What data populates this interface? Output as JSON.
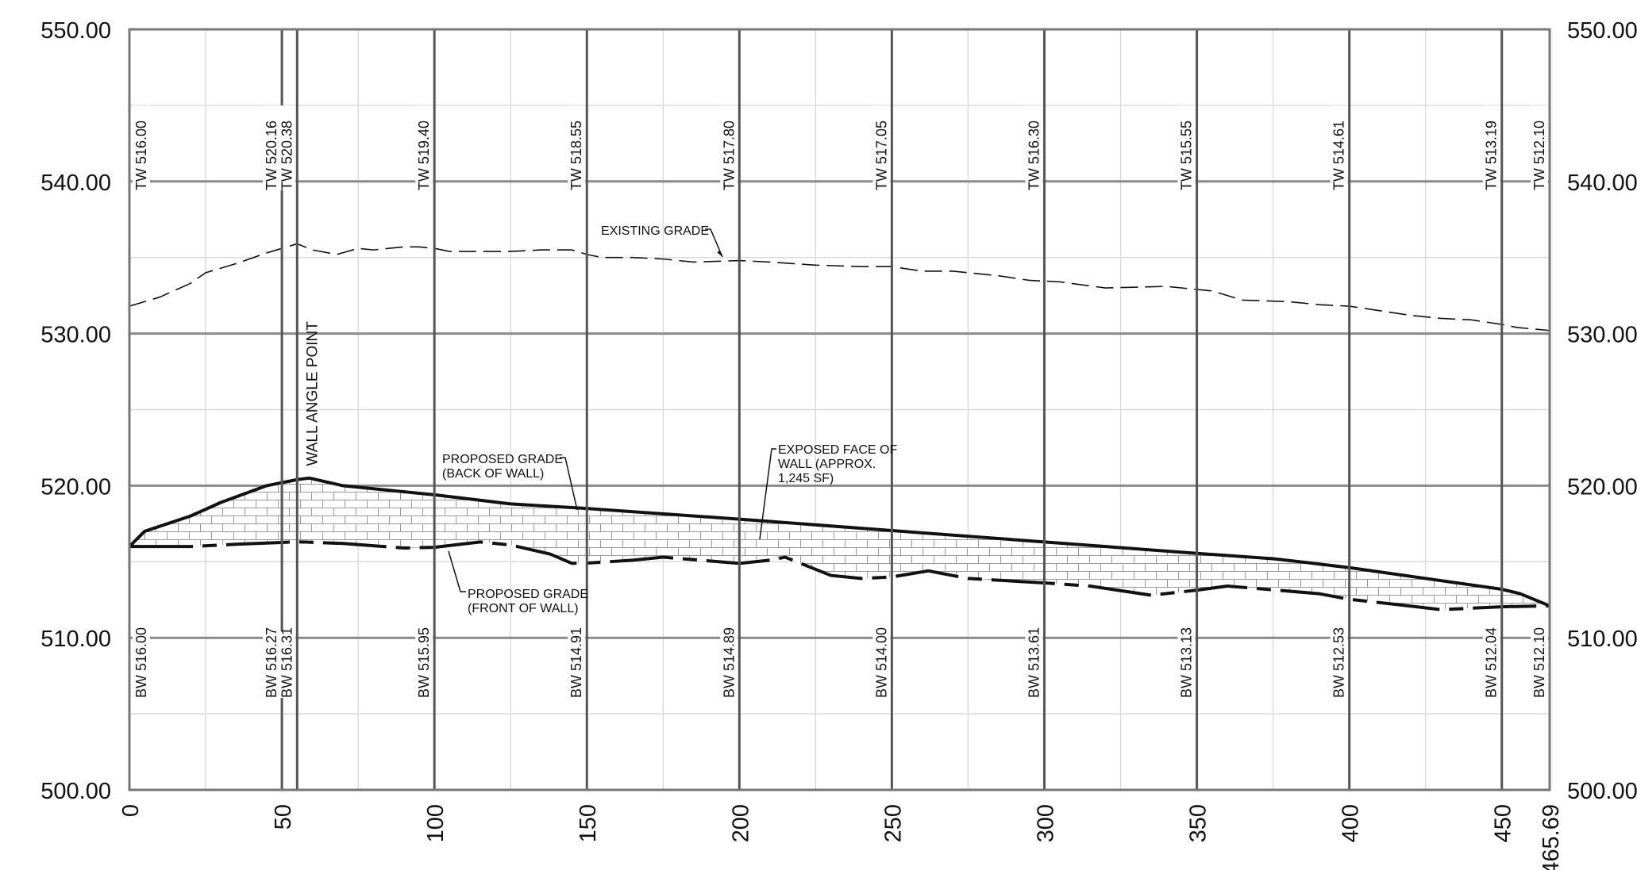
{
  "chart_data": {
    "type": "line",
    "xlim": [
      0,
      465.69
    ],
    "ylim": [
      500,
      550
    ],
    "grid": true,
    "x_major_ticks": [
      0,
      50,
      100,
      150,
      200,
      250,
      300,
      350,
      400,
      450,
      465.69
    ],
    "x_tick_labels": [
      "0",
      "50",
      "100",
      "150",
      "200",
      "250",
      "300",
      "350",
      "400",
      "450",
      "465.69"
    ],
    "y_major_ticks": [
      500,
      510,
      520,
      530,
      540,
      550
    ],
    "y_tick_labels": [
      "500.00",
      "510.00",
      "520.00",
      "530.00",
      "540.00",
      "550.00"
    ],
    "stations": [
      {
        "x": 0,
        "tw": "TW 516.00",
        "bw": "BW 516.00"
      },
      {
        "x": 50,
        "tw": "TW 520.16",
        "bw": "BW 516.27"
      },
      {
        "x": 55,
        "tw": "TW 520.38",
        "bw": "BW 516.31"
      },
      {
        "x": 100,
        "tw": "TW 519.40",
        "bw": "BW 515.95"
      },
      {
        "x": 150,
        "tw": "TW 518.55",
        "bw": "BW 514.91"
      },
      {
        "x": 200,
        "tw": "TW 517.80",
        "bw": "BW 514.89"
      },
      {
        "x": 250,
        "tw": "TW 517.05",
        "bw": "BW 514.00"
      },
      {
        "x": 300,
        "tw": "TW 516.30",
        "bw": "BW 513.61"
      },
      {
        "x": 350,
        "tw": "TW 515.55",
        "bw": "BW 513.13"
      },
      {
        "x": 400,
        "tw": "TW 514.61",
        "bw": "BW 512.53"
      },
      {
        "x": 450,
        "tw": "TW 513.19",
        "bw": "BW 512.04"
      },
      {
        "x": 465.69,
        "tw": "TW 512.10",
        "bw": "BW 512.10"
      }
    ],
    "series": [
      {
        "name": "EXISTING GRADE",
        "style": "dashed",
        "points": [
          [
            0,
            531.8
          ],
          [
            10,
            532.4
          ],
          [
            20,
            533.3
          ],
          [
            25,
            534.0
          ],
          [
            35,
            534.6
          ],
          [
            45,
            535.3
          ],
          [
            50,
            535.6
          ],
          [
            55,
            535.9
          ],
          [
            60,
            535.5
          ],
          [
            68,
            535.2
          ],
          [
            75,
            535.6
          ],
          [
            80,
            535.5
          ],
          [
            90,
            535.7
          ],
          [
            95,
            535.7
          ],
          [
            100,
            535.6
          ],
          [
            105,
            535.4
          ],
          [
            125,
            535.4
          ],
          [
            135,
            535.5
          ],
          [
            145,
            535.5
          ],
          [
            150,
            535.2
          ],
          [
            155,
            535.0
          ],
          [
            165,
            535.0
          ],
          [
            175,
            534.9
          ],
          [
            185,
            534.7
          ],
          [
            200,
            534.8
          ],
          [
            210,
            534.7
          ],
          [
            225,
            534.5
          ],
          [
            240,
            534.4
          ],
          [
            250,
            534.4
          ],
          [
            260,
            534.1
          ],
          [
            270,
            534.1
          ],
          [
            285,
            533.8
          ],
          [
            295,
            533.5
          ],
          [
            305,
            533.4
          ],
          [
            320,
            533.0
          ],
          [
            340,
            533.1
          ],
          [
            355,
            532.8
          ],
          [
            365,
            532.2
          ],
          [
            380,
            532.1
          ],
          [
            390,
            531.9
          ],
          [
            400,
            531.8
          ],
          [
            410,
            531.5
          ],
          [
            420,
            531.2
          ],
          [
            430,
            531.0
          ],
          [
            440,
            530.9
          ],
          [
            450,
            530.6
          ],
          [
            455,
            530.4
          ],
          [
            465.69,
            530.2
          ]
        ]
      },
      {
        "name": "PROPOSED GRADE (BACK OF WALL)",
        "style": "solid",
        "points": [
          [
            0,
            516.0
          ],
          [
            5,
            517.0
          ],
          [
            20,
            518.0
          ],
          [
            30,
            518.9
          ],
          [
            45,
            520.0
          ],
          [
            55,
            520.4
          ],
          [
            59,
            520.5
          ],
          [
            70,
            520.0
          ],
          [
            100,
            519.4
          ],
          [
            125,
            518.8
          ],
          [
            150,
            518.5
          ],
          [
            200,
            517.8
          ],
          [
            250,
            517.05
          ],
          [
            300,
            516.3
          ],
          [
            350,
            515.55
          ],
          [
            375,
            515.2
          ],
          [
            388,
            514.9
          ],
          [
            400,
            514.61
          ],
          [
            450,
            513.19
          ],
          [
            456,
            512.9
          ],
          [
            465.69,
            512.1
          ]
        ]
      },
      {
        "name": "PROPOSED GRADE (FRONT OF WALL)",
        "style": "dash-dot",
        "points": [
          [
            0,
            516.0
          ],
          [
            20,
            516.0
          ],
          [
            35,
            516.15
          ],
          [
            50,
            516.27
          ],
          [
            55,
            516.31
          ],
          [
            70,
            516.2
          ],
          [
            90,
            515.9
          ],
          [
            100,
            515.95
          ],
          [
            115,
            516.3
          ],
          [
            125,
            516.1
          ],
          [
            138,
            515.5
          ],
          [
            145,
            514.9
          ],
          [
            150,
            514.91
          ],
          [
            165,
            515.1
          ],
          [
            175,
            515.3
          ],
          [
            200,
            514.89
          ],
          [
            210,
            515.1
          ],
          [
            215,
            515.3
          ],
          [
            230,
            514.1
          ],
          [
            240,
            513.9
          ],
          [
            250,
            514.0
          ],
          [
            262,
            514.4
          ],
          [
            275,
            513.9
          ],
          [
            300,
            513.61
          ],
          [
            315,
            513.4
          ],
          [
            335,
            512.8
          ],
          [
            350,
            513.13
          ],
          [
            360,
            513.4
          ],
          [
            390,
            512.9
          ],
          [
            400,
            512.53
          ],
          [
            415,
            512.2
          ],
          [
            430,
            511.85
          ],
          [
            450,
            512.04
          ],
          [
            465.69,
            512.1
          ]
        ]
      }
    ],
    "annotations": {
      "wall_angle_point": "WALL ANGLE POINT",
      "existing_grade": "EXISTING GRADE",
      "proposed_back_line1": "PROPOSED GRADE",
      "proposed_back_line2": "(BACK OF WALL)",
      "proposed_front_line1": "PROPOSED GRADE",
      "proposed_front_line2": "(FRONT OF WALL)",
      "exposed_face_line1": "EXPOSED FACE OF",
      "exposed_face_line2": "WALL (APPROX.",
      "exposed_face_line3": "1,245 SF)"
    }
  }
}
